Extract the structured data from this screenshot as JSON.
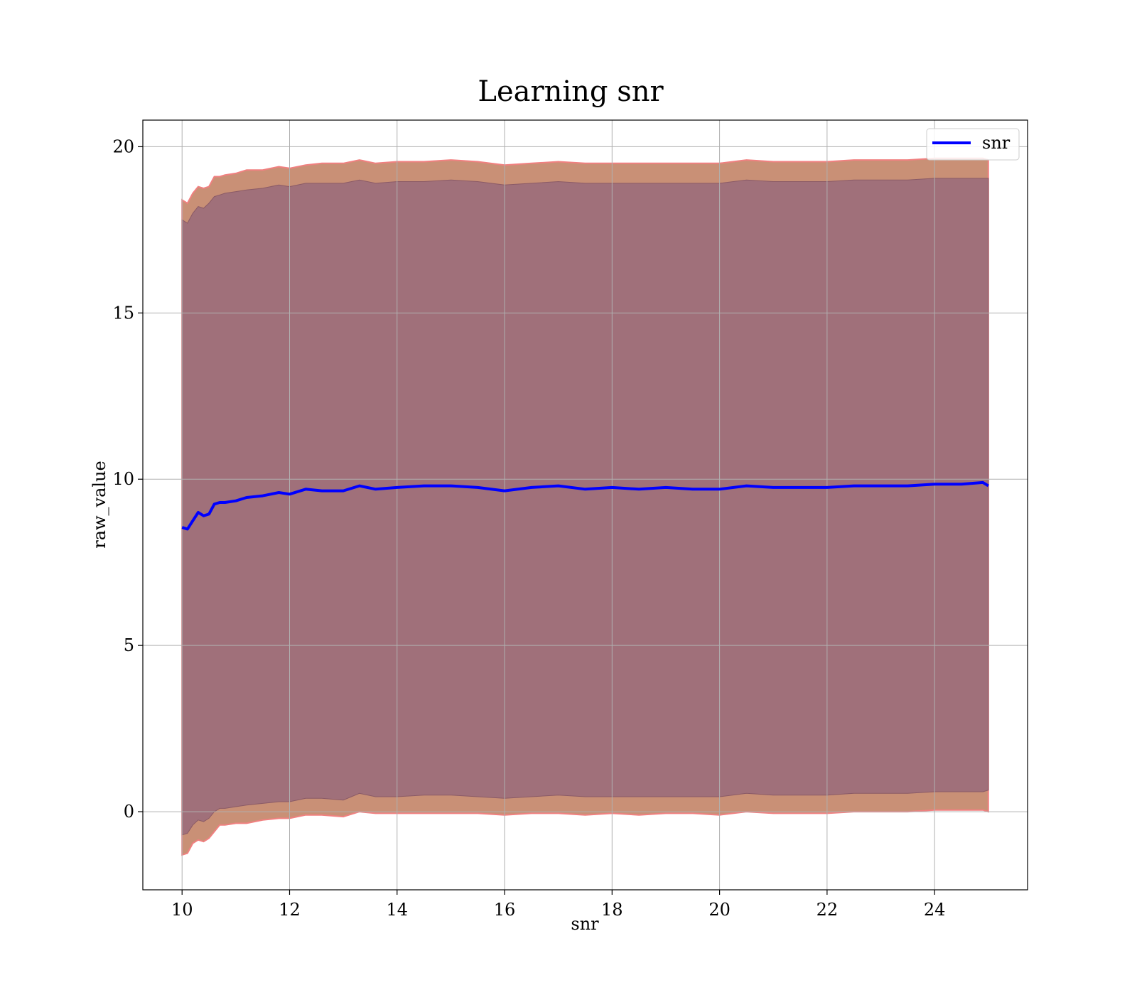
{
  "chart_data": {
    "type": "line",
    "title": "Learning snr",
    "xlabel": "snr",
    "ylabel": "raw_value",
    "xlim": [
      9.27,
      25.73
    ],
    "ylim": [
      -2.35,
      20.8
    ],
    "xticks": [
      10,
      12,
      14,
      16,
      18,
      20,
      22,
      24
    ],
    "yticks": [
      0,
      5,
      10,
      15,
      20
    ],
    "grid": true,
    "legend": {
      "position": "top-right",
      "entries": [
        "snr"
      ]
    },
    "colors": {
      "line": "#0000ff",
      "outer_band": "#c99076",
      "outer_band_edge": "#f08080",
      "inner_band": "#a0707a",
      "grid": "#b0b0b0"
    },
    "series": [
      {
        "name": "snr",
        "x": [
          10.0,
          10.1,
          10.2,
          10.3,
          10.4,
          10.5,
          10.6,
          10.7,
          10.8,
          11.0,
          11.2,
          11.5,
          11.8,
          12.0,
          12.3,
          12.6,
          13.0,
          13.3,
          13.6,
          14.0,
          14.5,
          15.0,
          15.5,
          16.0,
          16.5,
          17.0,
          17.5,
          18.0,
          18.5,
          19.0,
          19.5,
          20.0,
          20.5,
          21.0,
          21.5,
          22.0,
          22.5,
          23.0,
          23.5,
          24.0,
          24.5,
          24.9,
          25.0
        ],
        "values": [
          8.55,
          8.5,
          8.75,
          9.0,
          8.9,
          8.95,
          9.25,
          9.3,
          9.3,
          9.35,
          9.45,
          9.5,
          9.6,
          9.55,
          9.7,
          9.65,
          9.65,
          9.8,
          9.7,
          9.75,
          9.8,
          9.8,
          9.75,
          9.65,
          9.75,
          9.8,
          9.7,
          9.75,
          9.7,
          9.75,
          9.7,
          9.7,
          9.8,
          9.75,
          9.75,
          9.75,
          9.8,
          9.8,
          9.8,
          9.85,
          9.85,
          9.9,
          9.8
        ],
        "outer_upper": [
          18.4,
          18.3,
          18.6,
          18.8,
          18.75,
          18.8,
          19.1,
          19.1,
          19.15,
          19.2,
          19.3,
          19.3,
          19.4,
          19.35,
          19.45,
          19.5,
          19.5,
          19.6,
          19.5,
          19.55,
          19.55,
          19.6,
          19.55,
          19.45,
          19.5,
          19.55,
          19.5,
          19.5,
          19.5,
          19.5,
          19.5,
          19.5,
          19.6,
          19.55,
          19.55,
          19.55,
          19.6,
          19.6,
          19.6,
          19.65,
          19.65,
          19.65,
          19.6
        ],
        "outer_lower": [
          -1.3,
          -1.25,
          -0.95,
          -0.85,
          -0.9,
          -0.8,
          -0.6,
          -0.4,
          -0.4,
          -0.35,
          -0.35,
          -0.25,
          -0.2,
          -0.2,
          -0.1,
          -0.1,
          -0.15,
          0.0,
          -0.05,
          -0.05,
          -0.05,
          -0.05,
          -0.05,
          -0.1,
          -0.05,
          -0.05,
          -0.1,
          -0.05,
          -0.1,
          -0.05,
          -0.05,
          -0.1,
          0.0,
          -0.05,
          -0.05,
          -0.05,
          0.0,
          0.0,
          0.0,
          0.05,
          0.05,
          0.05,
          0.0
        ],
        "inner_upper": [
          17.8,
          17.7,
          18.0,
          18.2,
          18.15,
          18.3,
          18.5,
          18.55,
          18.6,
          18.65,
          18.7,
          18.75,
          18.85,
          18.8,
          18.9,
          18.9,
          18.9,
          19.0,
          18.9,
          18.95,
          18.95,
          19.0,
          18.95,
          18.85,
          18.9,
          18.95,
          18.9,
          18.9,
          18.9,
          18.9,
          18.9,
          18.9,
          19.0,
          18.95,
          18.95,
          18.95,
          19.0,
          19.0,
          19.0,
          19.05,
          19.05,
          19.05,
          19.05
        ],
        "inner_lower": [
          -0.7,
          -0.65,
          -0.4,
          -0.25,
          -0.3,
          -0.2,
          0.0,
          0.1,
          0.1,
          0.15,
          0.2,
          0.25,
          0.3,
          0.3,
          0.4,
          0.4,
          0.35,
          0.55,
          0.45,
          0.45,
          0.5,
          0.5,
          0.45,
          0.4,
          0.45,
          0.5,
          0.45,
          0.45,
          0.45,
          0.45,
          0.45,
          0.45,
          0.55,
          0.5,
          0.5,
          0.5,
          0.55,
          0.55,
          0.55,
          0.6,
          0.6,
          0.6,
          0.65
        ]
      }
    ]
  }
}
